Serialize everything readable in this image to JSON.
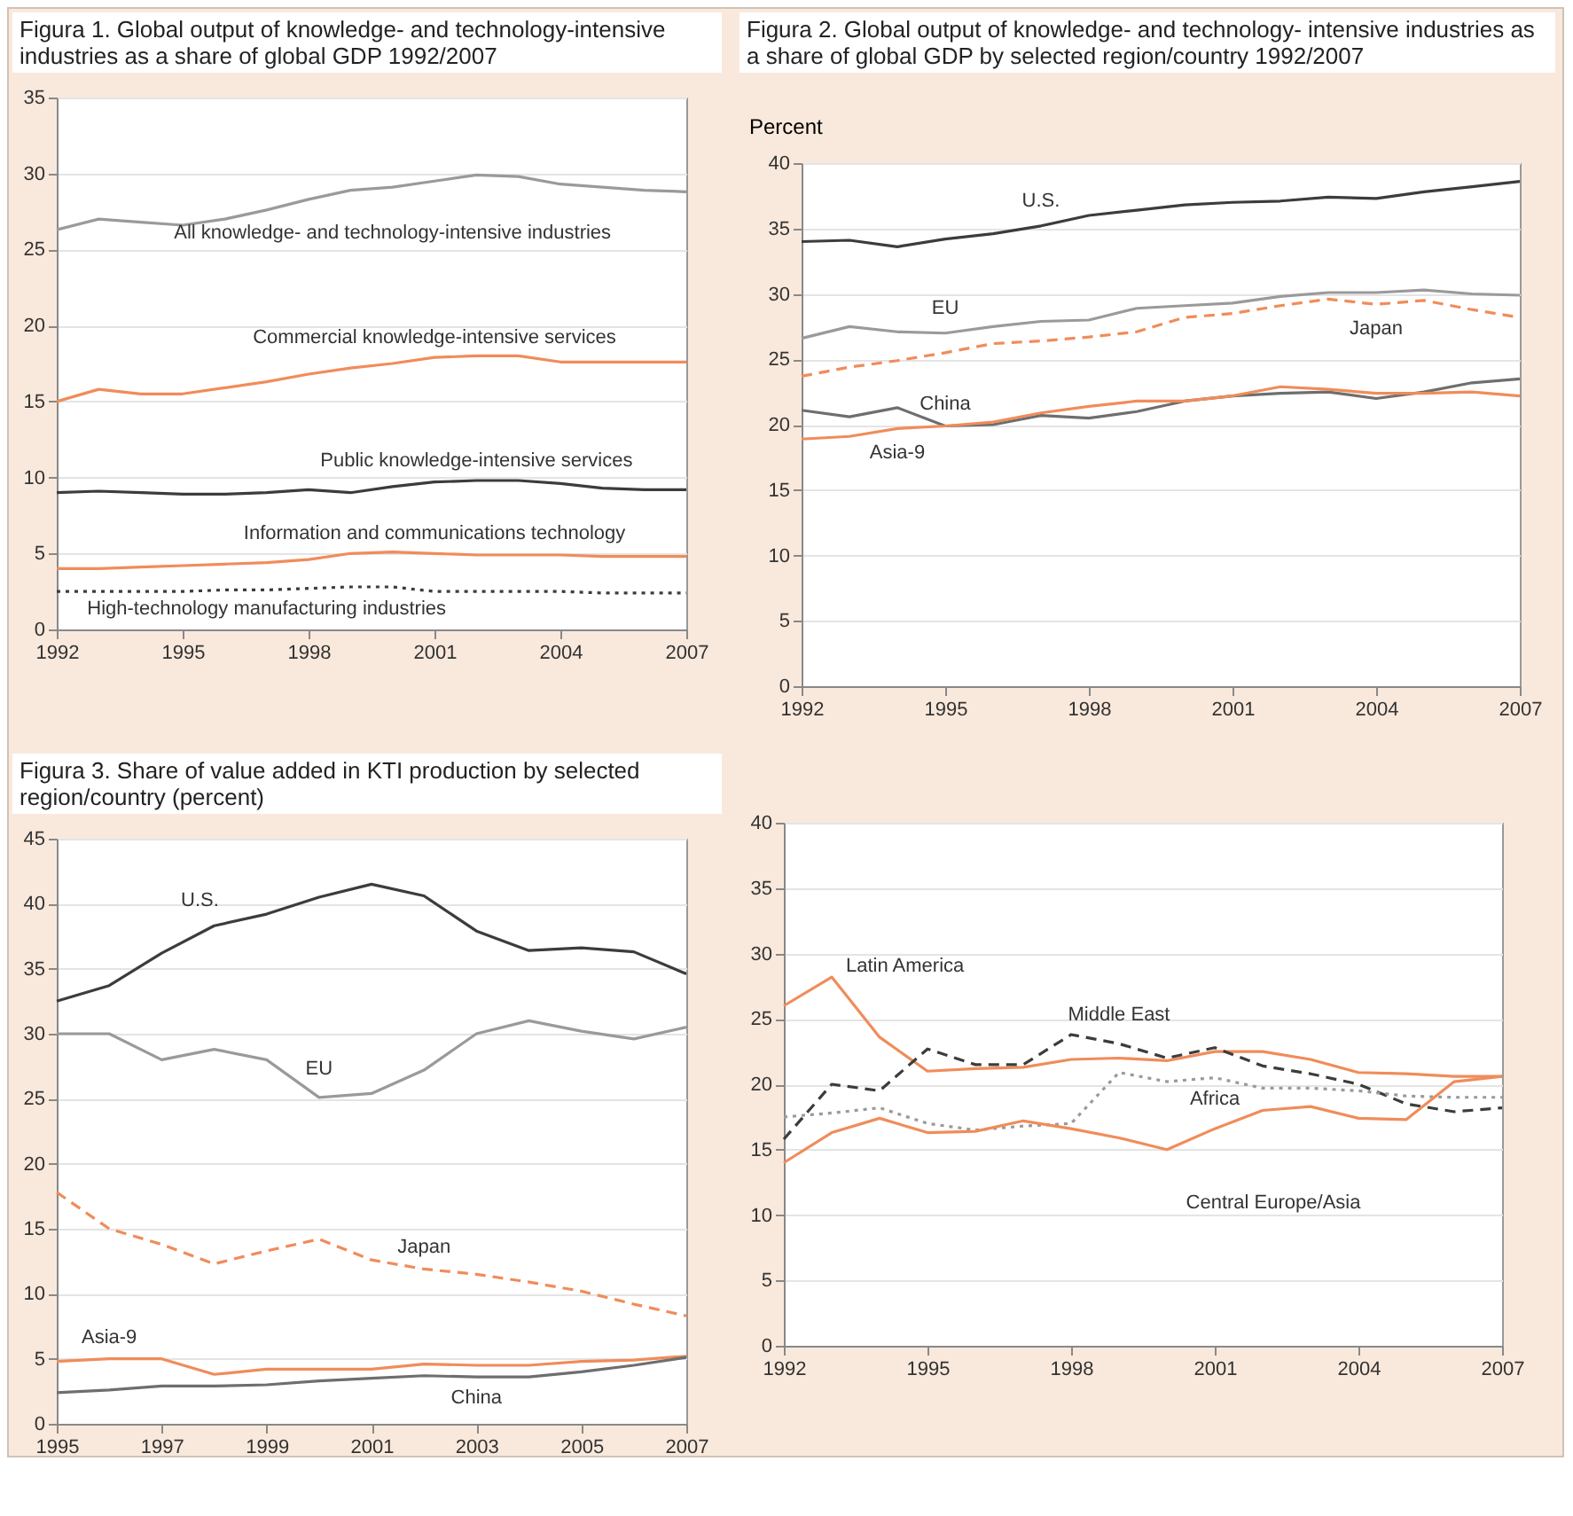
{
  "chart_data": [
    {
      "type": "line",
      "title": "Figura 1. Global output of knowledge- and technology-intensive industries as a share of global GDP 1992/2007",
      "x": [
        1992,
        1993,
        1994,
        1995,
        1996,
        1997,
        1998,
        1999,
        2000,
        2001,
        2002,
        2003,
        2004,
        2005,
        2006,
        2007
      ],
      "xlim": [
        1992,
        2007
      ],
      "xticks": [
        1992,
        1995,
        1998,
        2001,
        2004,
        2007
      ],
      "ylim": [
        0,
        35
      ],
      "yticks": [
        0,
        5,
        10,
        15,
        20,
        25,
        30,
        35
      ],
      "grid": "y",
      "series": [
        {
          "name": "All knowledge- and technology-intensive industries",
          "color": "#9a9a9a",
          "line_style": "solid",
          "values": [
            26.3,
            27.0,
            26.8,
            26.6,
            27.0,
            27.6,
            28.3,
            28.9,
            29.1,
            29.5,
            29.9,
            29.8,
            29.3,
            29.1,
            28.9,
            28.8
          ]
        },
        {
          "name": "Commercial knowledge-intensive services",
          "color": "#f08c5a",
          "line_style": "solid",
          "values": [
            15.0,
            15.8,
            15.5,
            15.5,
            15.9,
            16.3,
            16.8,
            17.2,
            17.5,
            17.9,
            18.0,
            18.0,
            17.6,
            17.6,
            17.6,
            17.6
          ]
        },
        {
          "name": "Public knowledge-intensive services",
          "color": "#3c3c3c",
          "line_style": "solid",
          "values": [
            9.0,
            9.1,
            9.0,
            8.9,
            8.9,
            9.0,
            9.2,
            9.0,
            9.4,
            9.7,
            9.8,
            9.8,
            9.6,
            9.3,
            9.2,
            9.2
          ]
        },
        {
          "name": "Information and communications technology",
          "color": "#f08c5a",
          "line_style": "solid",
          "values": [
            4.0,
            4.0,
            4.1,
            4.2,
            4.3,
            4.4,
            4.6,
            5.0,
            5.1,
            5.0,
            4.9,
            4.9,
            4.9,
            4.8,
            4.8,
            4.8
          ]
        },
        {
          "name": "High-technology manufacturing industries",
          "color": "#3c3c3c",
          "line_style": "dotted",
          "values": [
            2.5,
            2.5,
            2.5,
            2.5,
            2.6,
            2.6,
            2.7,
            2.8,
            2.8,
            2.5,
            2.5,
            2.5,
            2.5,
            2.4,
            2.4,
            2.4
          ]
        }
      ]
    },
    {
      "type": "line",
      "title": "Figura 2. Global output of knowledge- and technology- intensive industries as a share of global GDP by selected region/country 1992/2007",
      "ylabel": "Percent",
      "x": [
        1992,
        1993,
        1994,
        1995,
        1996,
        1997,
        1998,
        1999,
        2000,
        2001,
        2002,
        2003,
        2004,
        2005,
        2006,
        2007
      ],
      "xlim": [
        1992,
        2007
      ],
      "xticks": [
        1992,
        1995,
        1998,
        2001,
        2004,
        2007
      ],
      "ylim": [
        0,
        40
      ],
      "yticks": [
        0,
        5,
        10,
        15,
        20,
        25,
        30,
        35,
        40
      ],
      "grid": "y",
      "series": [
        {
          "name": "U.S.",
          "color": "#3c3c3c",
          "line_style": "solid",
          "values": [
            34.0,
            34.1,
            33.6,
            34.2,
            34.6,
            35.2,
            36.0,
            36.4,
            36.8,
            37.0,
            37.1,
            37.4,
            37.3,
            37.8,
            38.2,
            38.6
          ]
        },
        {
          "name": "EU",
          "color": "#9a9a9a",
          "line_style": "solid",
          "values": [
            26.6,
            27.5,
            27.1,
            27.0,
            27.5,
            27.9,
            28.0,
            28.9,
            29.1,
            29.3,
            29.8,
            30.1,
            30.1,
            30.3,
            30.0,
            29.9
          ]
        },
        {
          "name": "Japan",
          "color": "#f08c5a",
          "line_style": "dashed",
          "values": [
            23.7,
            24.4,
            24.9,
            25.5,
            26.2,
            26.4,
            26.7,
            27.1,
            28.2,
            28.5,
            29.1,
            29.6,
            29.2,
            29.5,
            28.8,
            28.2
          ]
        },
        {
          "name": "China",
          "color": "#6e6e6e",
          "line_style": "solid",
          "values": [
            21.1,
            20.6,
            21.3,
            19.9,
            20.0,
            20.7,
            20.5,
            21.0,
            21.8,
            22.2,
            22.4,
            22.5,
            22.0,
            22.5,
            23.2,
            23.5
          ]
        },
        {
          "name": "Asia-9",
          "color": "#f08c5a",
          "line_style": "solid",
          "values": [
            18.9,
            19.1,
            19.7,
            19.9,
            20.2,
            20.9,
            21.4,
            21.8,
            21.8,
            22.2,
            22.9,
            22.7,
            22.4,
            22.4,
            22.5,
            22.2
          ]
        }
      ]
    },
    {
      "type": "line",
      "title": "Figura 3. Share of value added in KTI production by selected region/country (percent)",
      "x": [
        1995,
        1996,
        1997,
        1998,
        1999,
        2000,
        2001,
        2002,
        2003,
        2004,
        2005,
        2006,
        2007
      ],
      "xlim": [
        1995,
        2007
      ],
      "xticks": [
        1995,
        1997,
        1999,
        2001,
        2003,
        2005,
        2007
      ],
      "ylim": [
        0,
        45
      ],
      "yticks": [
        0,
        5,
        10,
        15,
        20,
        25,
        30,
        35,
        40,
        45
      ],
      "grid": "y",
      "series": [
        {
          "name": "U.S.",
          "color": "#3c3c3c",
          "line_style": "solid",
          "values": [
            32.5,
            33.7,
            36.2,
            38.3,
            39.2,
            40.5,
            41.5,
            40.6,
            37.9,
            36.4,
            36.6,
            36.3,
            34.6
          ]
        },
        {
          "name": "EU",
          "color": "#9a9a9a",
          "line_style": "solid",
          "values": [
            30.0,
            30.0,
            28.0,
            28.8,
            28.0,
            25.1,
            25.4,
            27.2,
            30.0,
            31.0,
            30.2,
            29.6,
            30.5
          ]
        },
        {
          "name": "Japan",
          "color": "#f08c5a",
          "line_style": "dashed",
          "values": [
            17.8,
            15.0,
            13.8,
            12.3,
            13.3,
            14.2,
            12.6,
            11.9,
            11.5,
            10.9,
            10.2,
            9.2,
            8.3
          ]
        },
        {
          "name": "Asia-9",
          "color": "#f08c5a",
          "line_style": "solid",
          "values": [
            4.8,
            5.0,
            5.0,
            3.8,
            4.2,
            4.2,
            4.2,
            4.6,
            4.5,
            4.5,
            4.8,
            4.9,
            5.2
          ]
        },
        {
          "name": "China",
          "color": "#6e6e6e",
          "line_style": "solid",
          "values": [
            2.4,
            2.6,
            2.9,
            2.9,
            3.0,
            3.3,
            3.5,
            3.7,
            3.6,
            3.6,
            4.0,
            4.5,
            5.1
          ]
        }
      ]
    },
    {
      "type": "line",
      "x": [
        1992,
        1993,
        1994,
        1995,
        1996,
        1997,
        1998,
        1999,
        2000,
        2001,
        2002,
        2003,
        2004,
        2005,
        2006,
        2007
      ],
      "xlim": [
        1992,
        2007
      ],
      "xticks": [
        1992,
        1995,
        1998,
        2001,
        2004,
        2007
      ],
      "ylim": [
        0,
        40
      ],
      "yticks": [
        0,
        5,
        10,
        15,
        20,
        25,
        30,
        35,
        40
      ],
      "grid": "y",
      "series": [
        {
          "name": "Latin America",
          "color": "#f08c5a",
          "line_style": "solid",
          "values": [
            26.0,
            28.2,
            23.6,
            21.0,
            21.2,
            21.3,
            21.9,
            22.0,
            21.8,
            22.5,
            22.5,
            21.9,
            20.9,
            20.8,
            20.6,
            20.6
          ]
        },
        {
          "name": "Middle East",
          "color": "#3c3c3c",
          "line_style": "dashed",
          "values": [
            15.8,
            20.0,
            19.5,
            22.7,
            21.5,
            21.5,
            23.8,
            23.1,
            22.0,
            22.8,
            21.4,
            20.8,
            20.0,
            18.5,
            17.9,
            18.2
          ]
        },
        {
          "name": "Africa",
          "color": "#9a9a9a",
          "line_style": "dotted",
          "values": [
            17.5,
            17.8,
            18.2,
            17.0,
            16.5,
            16.8,
            17.0,
            20.9,
            20.2,
            20.5,
            19.7,
            19.7,
            19.5,
            19.1,
            19.0,
            19.0
          ]
        },
        {
          "name": "Central Europe/Asia",
          "color": "#f08c5a",
          "line_style": "solid",
          "values": [
            14.0,
            16.3,
            17.4,
            16.3,
            16.4,
            17.2,
            16.6,
            15.9,
            15.0,
            16.6,
            18.0,
            18.3,
            17.4,
            17.3,
            20.2,
            20.6
          ]
        }
      ]
    }
  ]
}
